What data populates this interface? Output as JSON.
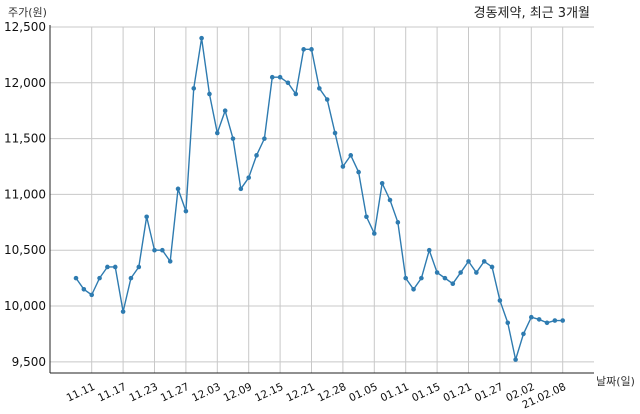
{
  "chart_data": {
    "type": "line",
    "title": "경동제약, 최근 3개월",
    "ylabel": "주가(원)",
    "xlabel": "날짜(일)",
    "ylim": [
      9400,
      12500
    ],
    "yticks": [
      9500,
      10000,
      10500,
      11000,
      11500,
      12000,
      12500
    ],
    "ytick_labels": [
      "9,500",
      "10,000",
      "10,500",
      "11,000",
      "11,500",
      "12,000",
      "12,500"
    ],
    "xticks": [
      {
        "index": 2,
        "label": "11.11"
      },
      {
        "index": 6,
        "label": "11.17"
      },
      {
        "index": 10,
        "label": "11.23"
      },
      {
        "index": 14,
        "label": "11.27"
      },
      {
        "index": 18,
        "label": "12.03"
      },
      {
        "index": 22,
        "label": "12.09"
      },
      {
        "index": 26,
        "label": "12.15"
      },
      {
        "index": 30,
        "label": "12.21"
      },
      {
        "index": 34,
        "label": "12.28"
      },
      {
        "index": 38,
        "label": "01.05"
      },
      {
        "index": 42,
        "label": "01.11"
      },
      {
        "index": 46,
        "label": "01.15"
      },
      {
        "index": 50,
        "label": "01.21"
      },
      {
        "index": 54,
        "label": "01.27"
      },
      {
        "index": 58,
        "label": "02.02"
      },
      {
        "index": 62,
        "label": "21.02.08"
      }
    ],
    "grid": true,
    "series": [
      {
        "color": "#2e7bb0",
        "values": [
          10250,
          10150,
          10100,
          10250,
          10350,
          10350,
          9950,
          10250,
          10350,
          10800,
          10500,
          10500,
          10400,
          11050,
          10850,
          11950,
          12400,
          11900,
          11550,
          11750,
          11500,
          11050,
          11150,
          11350,
          11500,
          12050,
          12050,
          12000,
          11900,
          12300,
          12300,
          11950,
          11850,
          11550,
          11250,
          11350,
          11200,
          10800,
          10650,
          11100,
          10950,
          10750,
          10250,
          10150,
          10250,
          10500,
          10300,
          10250,
          10200,
          10300,
          10400,
          10300,
          10400,
          10350,
          10050,
          9850,
          9520,
          9750,
          9900,
          9880,
          9850,
          9870,
          9870
        ]
      }
    ]
  }
}
